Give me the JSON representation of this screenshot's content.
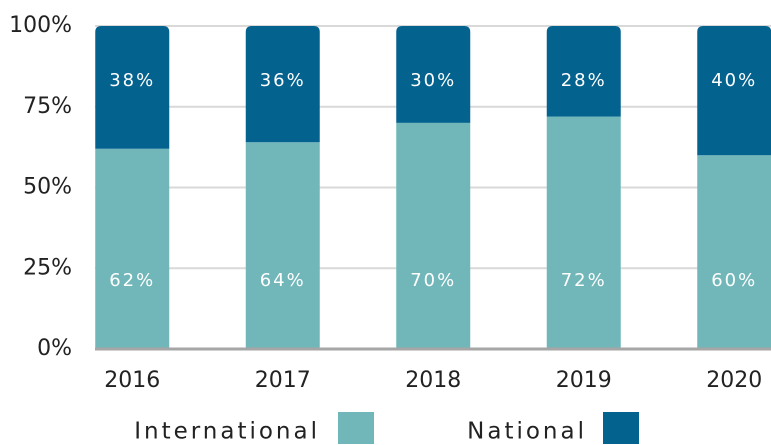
{
  "chart_data": {
    "type": "stacked_bar",
    "categories": [
      "2016",
      "2017",
      "2018",
      "2019",
      "2020"
    ],
    "series": [
      {
        "name": "International",
        "color": "#71b7b9",
        "values": [
          62,
          64,
          70,
          72,
          60
        ],
        "value_labels": [
          "62%",
          "64%",
          "70%",
          "72%",
          "60%"
        ]
      },
      {
        "name": "National",
        "color": "#04628f",
        "values": [
          38,
          36,
          30,
          28,
          40
        ],
        "value_labels": [
          "38%",
          "36%",
          "30%",
          "28%",
          "40%"
        ]
      }
    ],
    "ylim": [
      0,
      100
    ],
    "yticks": [
      {
        "value": 0,
        "label": "0%"
      },
      {
        "value": 25,
        "label": "25%"
      },
      {
        "value": 50,
        "label": "50%"
      },
      {
        "value": 75,
        "label": "75%"
      },
      {
        "value": 100,
        "label": "100%"
      }
    ],
    "grid": true
  }
}
